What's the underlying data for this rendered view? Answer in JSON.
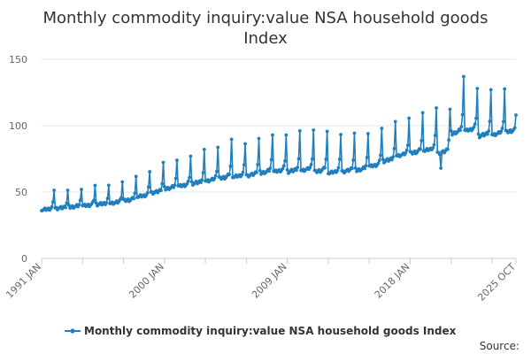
{
  "chart_data": {
    "type": "line",
    "title_lines": [
      "Monthly commodity inquiry:value NSA household goods",
      "Index"
    ],
    "xlabel": "",
    "ylabel": "",
    "ylim": [
      0,
      150
    ],
    "y_ticks": [
      0,
      50,
      100,
      150
    ],
    "x_range": [
      "1991 JAN",
      "2025 OCT"
    ],
    "x_ticks": [
      {
        "label": "1991 JAN",
        "year": 1991,
        "month": 1
      },
      {
        "label": "2000 JAN",
        "year": 2000,
        "month": 1
      },
      {
        "label": "2009 JAN",
        "year": 2009,
        "month": 1
      },
      {
        "label": "2018 JAN",
        "year": 2018,
        "month": 1
      },
      {
        "label": "2025 OCT",
        "year": 2025,
        "month": 10
      }
    ],
    "grid": "horizontal",
    "legend_position": "bottom",
    "color": "#1f7fbf",
    "series": [
      {
        "name": "Monthly commodity inquiry:value NSA household goods Index",
        "frequency": "monthly",
        "start": "1991 JAN",
        "end": "2025 OCT",
        "annual_points": {
          "1991": {
            "base": 37,
            "peak": 52
          },
          "1992": {
            "base": 38,
            "peak": 51
          },
          "1993": {
            "base": 39,
            "peak": 53
          },
          "1994": {
            "base": 40,
            "peak": 55
          },
          "1995": {
            "base": 41,
            "peak": 54
          },
          "1996": {
            "base": 42,
            "peak": 58
          },
          "1997": {
            "base": 44,
            "peak": 61
          },
          "1998": {
            "base": 47,
            "peak": 66
          },
          "1999": {
            "base": 50,
            "peak": 72
          },
          "2000": {
            "base": 53,
            "peak": 75
          },
          "2001": {
            "base": 55,
            "peak": 77
          },
          "2002": {
            "base": 57,
            "peak": 81
          },
          "2003": {
            "base": 59,
            "peak": 84
          },
          "2004": {
            "base": 61,
            "peak": 89
          },
          "2005": {
            "base": 62,
            "peak": 87
          },
          "2006": {
            "base": 63,
            "peak": 90
          },
          "2007": {
            "base": 65,
            "peak": 94
          },
          "2008": {
            "base": 66,
            "peak": 93
          },
          "2009": {
            "base": 66,
            "peak": 95
          },
          "2010": {
            "base": 67,
            "peak": 97
          },
          "2011": {
            "base": 66,
            "peak": 95
          },
          "2012": {
            "base": 65,
            "peak": 94
          },
          "2013": {
            "base": 66,
            "peak": 94
          },
          "2014": {
            "base": 67,
            "peak": 95
          },
          "2015": {
            "base": 70,
            "peak": 98
          },
          "2016": {
            "base": 74,
            "peak": 102
          },
          "2017": {
            "base": 78,
            "peak": 106
          },
          "2018": {
            "base": 80,
            "peak": 109
          },
          "2019": {
            "base": 82,
            "peak": 114
          },
          "2020": {
            "base": 80,
            "peak": 112
          },
          "2021": {
            "base": 95,
            "peak": 137
          },
          "2022": {
            "base": 97,
            "peak": 128
          },
          "2023": {
            "base": 93,
            "peak": 126
          },
          "2024": {
            "base": 94,
            "peak": 128
          },
          "2025": {
            "base": 96,
            "peak": 122
          }
        },
        "notable_values": {
          "2020 APR": 68,
          "2021 DEC": 137,
          "2025 OCT": 108
        }
      }
    ]
  },
  "legend": {
    "label": "Monthly commodity inquiry:value NSA household goods Index"
  },
  "source": {
    "label": "Source:"
  }
}
